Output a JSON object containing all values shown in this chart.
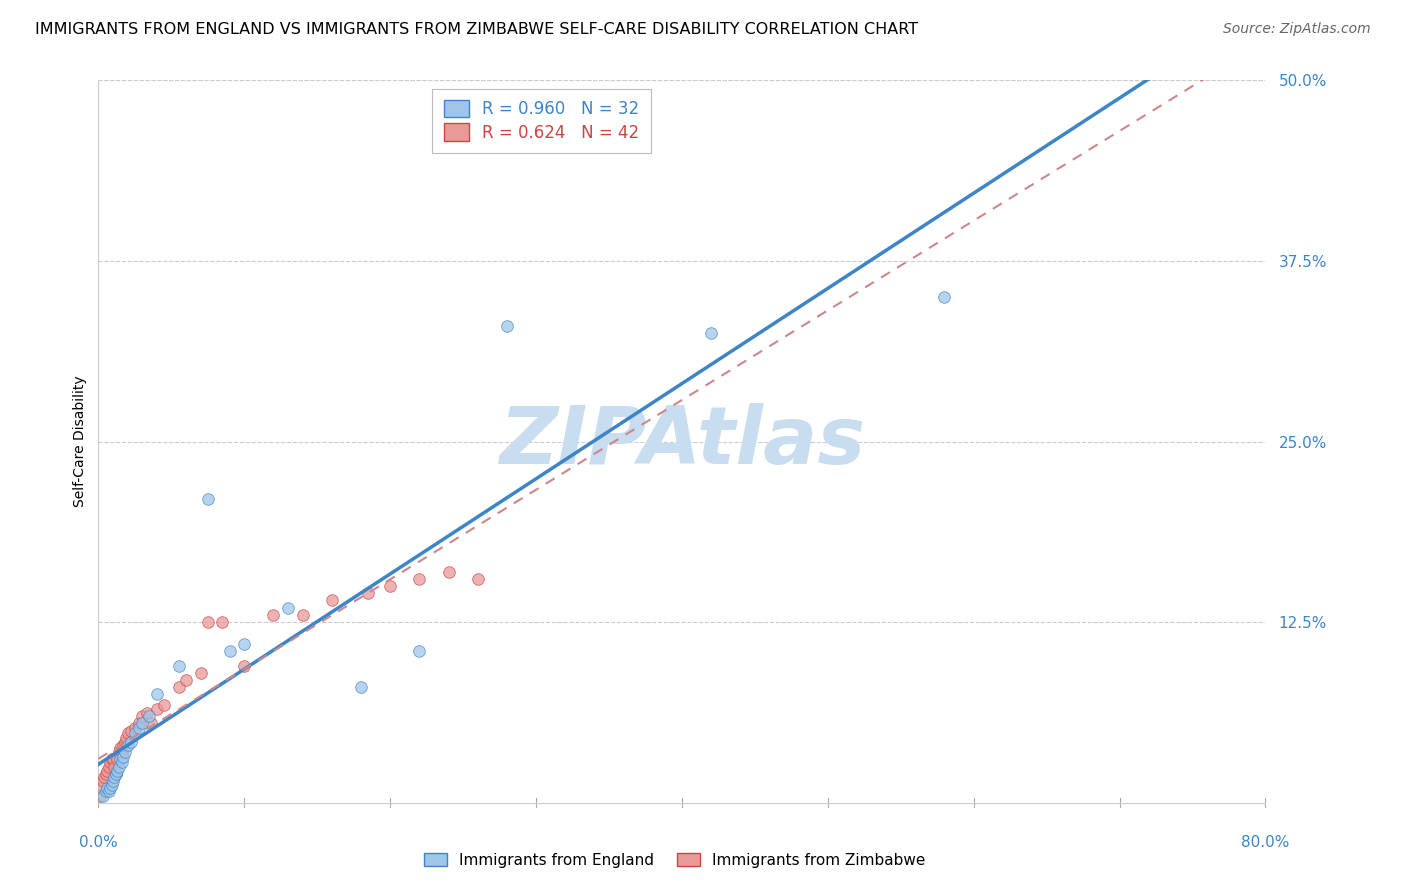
{
  "title": "IMMIGRANTS FROM ENGLAND VS IMMIGRANTS FROM ZIMBABWE SELF-CARE DISABILITY CORRELATION CHART",
  "source": "Source: ZipAtlas.com",
  "ylabel": "Self-Care Disability",
  "y_ticks": [
    0.0,
    0.125,
    0.25,
    0.375,
    0.5
  ],
  "y_tick_labels": [
    "",
    "12.5%",
    "25.0%",
    "37.5%",
    "50.0%"
  ],
  "xlim": [
    0.0,
    0.8
  ],
  "ylim": [
    0.0,
    0.5
  ],
  "england_R": 0.96,
  "england_N": 32,
  "zimbabwe_R": 0.624,
  "zimbabwe_N": 42,
  "england_color": "#9fc5e8",
  "zimbabwe_color": "#ea9999",
  "england_edge_color": "#3d85c8",
  "zimbabwe_edge_color": "#cc4444",
  "england_line_color": "#3d85c8",
  "zimbabwe_line_color": "#cc8888",
  "watermark_color": "#c8ddf0",
  "england_x": [
    0.003,
    0.005,
    0.006,
    0.007,
    0.008,
    0.009,
    0.01,
    0.011,
    0.012,
    0.013,
    0.014,
    0.015,
    0.016,
    0.017,
    0.018,
    0.02,
    0.022,
    0.025,
    0.028,
    0.03,
    0.035,
    0.04,
    0.055,
    0.075,
    0.09,
    0.1,
    0.13,
    0.18,
    0.22,
    0.28,
    0.42,
    0.58
  ],
  "england_y": [
    0.005,
    0.008,
    0.01,
    0.008,
    0.01,
    0.012,
    0.015,
    0.018,
    0.02,
    0.022,
    0.025,
    0.03,
    0.028,
    0.032,
    0.035,
    0.04,
    0.042,
    0.048,
    0.052,
    0.055,
    0.06,
    0.075,
    0.095,
    0.21,
    0.105,
    0.11,
    0.135,
    0.08,
    0.105,
    0.33,
    0.325,
    0.35
  ],
  "zimbabwe_x": [
    0.001,
    0.002,
    0.003,
    0.004,
    0.005,
    0.006,
    0.007,
    0.008,
    0.009,
    0.01,
    0.011,
    0.012,
    0.013,
    0.014,
    0.015,
    0.016,
    0.017,
    0.018,
    0.019,
    0.02,
    0.022,
    0.025,
    0.028,
    0.03,
    0.033,
    0.036,
    0.04,
    0.045,
    0.055,
    0.06,
    0.07,
    0.075,
    0.085,
    0.1,
    0.12,
    0.14,
    0.16,
    0.185,
    0.2,
    0.22,
    0.24,
    0.26
  ],
  "zimbabwe_y": [
    0.005,
    0.01,
    0.015,
    0.018,
    0.02,
    0.022,
    0.025,
    0.028,
    0.03,
    0.03,
    0.025,
    0.02,
    0.03,
    0.035,
    0.038,
    0.035,
    0.04,
    0.042,
    0.045,
    0.048,
    0.05,
    0.052,
    0.055,
    0.06,
    0.062,
    0.055,
    0.065,
    0.068,
    0.08,
    0.085,
    0.09,
    0.125,
    0.125,
    0.095,
    0.13,
    0.13,
    0.14,
    0.145,
    0.15,
    0.155,
    0.16,
    0.155
  ],
  "title_fontsize": 11.5,
  "source_fontsize": 10,
  "axis_label_fontsize": 10,
  "tick_fontsize": 11,
  "legend_fontsize": 12,
  "marker_size": 70
}
